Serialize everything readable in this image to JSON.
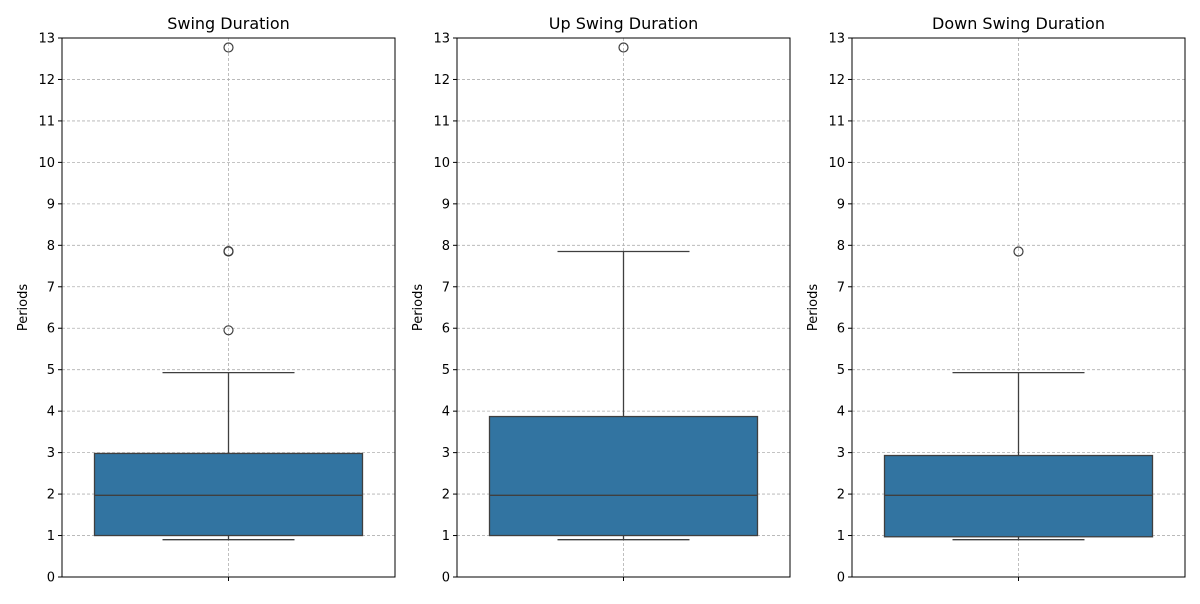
{
  "chart_data": [
    {
      "type": "box",
      "title": "Swing Duration",
      "xlabel": "",
      "ylabel": "Periods",
      "ylim": [
        0,
        13
      ],
      "yticks": [
        0,
        1,
        2,
        3,
        4,
        5,
        6,
        7,
        8,
        9,
        10,
        11,
        12,
        13
      ],
      "grid": true,
      "box": {
        "whisker_low": 0.9,
        "q1": 1.0,
        "median": 1.97,
        "q3": 2.98,
        "whisker_high": 4.93,
        "outliers": [
          5.95,
          7.85,
          7.86,
          12.77
        ]
      }
    },
    {
      "type": "box",
      "title": "Up Swing Duration",
      "xlabel": "",
      "ylabel": "Periods",
      "ylim": [
        0,
        13
      ],
      "yticks": [
        0,
        1,
        2,
        3,
        4,
        5,
        6,
        7,
        8,
        9,
        10,
        11,
        12,
        13
      ],
      "grid": true,
      "box": {
        "whisker_low": 0.9,
        "q1": 1.0,
        "median": 1.97,
        "q3": 3.87,
        "whisker_high": 7.85,
        "outliers": [
          12.77
        ]
      }
    },
    {
      "type": "box",
      "title": "Down Swing Duration",
      "xlabel": "",
      "ylabel": "Periods",
      "ylim": [
        0,
        13
      ],
      "yticks": [
        0,
        1,
        2,
        3,
        4,
        5,
        6,
        7,
        8,
        9,
        10,
        11,
        12,
        13
      ],
      "grid": true,
      "box": {
        "whisker_low": 0.9,
        "q1": 0.97,
        "median": 1.97,
        "q3": 2.93,
        "whisker_high": 4.93,
        "outliers": [
          7.85
        ]
      }
    }
  ],
  "colors": {
    "box_fill": "#3274a1",
    "box_line": "#3f3f3f",
    "grid": "#b0b0b0"
  }
}
